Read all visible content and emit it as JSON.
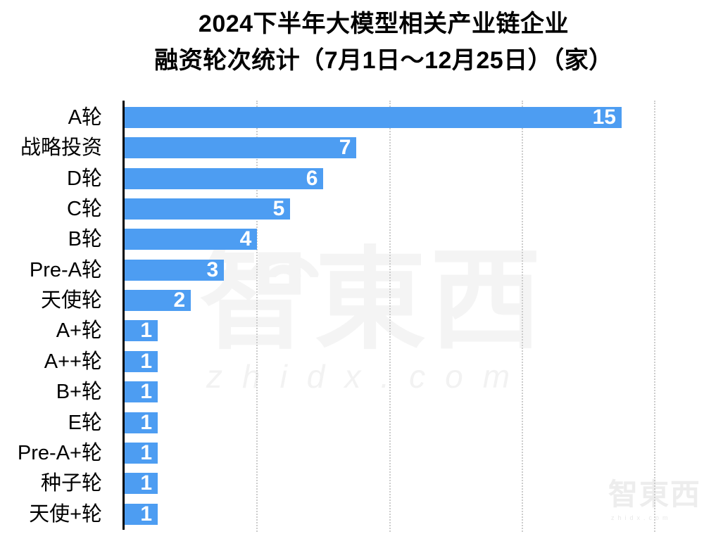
{
  "title": {
    "line1": "2024下半年大模型相关产业链企业",
    "line2": "融资轮次统计（7月1日～12月25日）（家）"
  },
  "chart_data": {
    "type": "bar",
    "orientation": "horizontal",
    "title": "2024下半年大模型相关产业链企业融资轮次统计（7月1日～12月25日）（家）",
    "categories": [
      "A轮",
      "战略投资",
      "D轮",
      "C轮",
      "B轮",
      "Pre-A轮",
      "天使轮",
      "A+轮",
      "A++轮",
      "B+轮",
      "E轮",
      "Pre-A+轮",
      "种子轮",
      "天使+轮"
    ],
    "values": [
      15,
      7,
      6,
      5,
      4,
      3,
      2,
      1,
      1,
      1,
      1,
      1,
      1,
      1
    ],
    "xlabel": "",
    "ylabel": "",
    "xlim": [
      0,
      16
    ],
    "gridline_values": [
      4,
      8,
      12,
      16
    ],
    "grid": "vertical-dotted",
    "legend": "none",
    "value_labels": "inside-end-white"
  },
  "colors": {
    "bar": "#4d9df2",
    "axis": "#000000",
    "gridline": "#cccccc",
    "title_text": "#000000",
    "category_text": "#000000",
    "value_text": "#ffffff",
    "background": "#ffffff",
    "watermark": "#f2f2f2"
  },
  "watermark": {
    "center_logo": "智東西",
    "center_url": "zhidx.com",
    "corner_logo": "智東西",
    "corner_url": "zhidx.com"
  }
}
